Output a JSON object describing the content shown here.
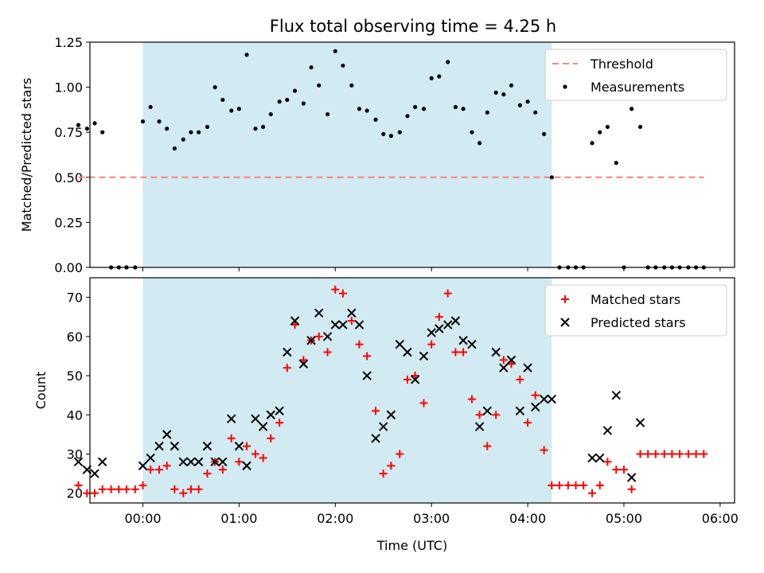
{
  "chart_data": [
    {
      "type": "scatter",
      "title": "Flux total observing time = 4.25 h",
      "xlabel": "",
      "ylabel": "Matched/Predicted stars",
      "xlim": [
        -0.55,
        6.15
      ],
      "ylim": [
        0,
        1.25
      ],
      "x_unit": "hours since 00:00 UTC",
      "x_tick_labels": [
        "00:00",
        "01:00",
        "02:00",
        "03:00",
        "04:00",
        "05:00",
        "06:00"
      ],
      "y_ticks": [
        0,
        0.25,
        0.5,
        0.75,
        1.0,
        1.25
      ],
      "y_tick_labels": [
        "0.00",
        "0.25",
        "0.50",
        "0.75",
        "1.00",
        "1.25"
      ],
      "shaded_interval": [
        0,
        4.25
      ],
      "shade_color": "#add8e6",
      "legend_position": "top-right",
      "series": [
        {
          "name": "Threshold",
          "kind": "dashed-line",
          "color": "#ff7f7f",
          "x": [
            -0.67,
            5.83
          ],
          "y": [
            0.5,
            0.5
          ]
        },
        {
          "name": "Measurements",
          "kind": "dot",
          "color": "#000000",
          "x": [
            -0.67,
            -0.58,
            -0.5,
            -0.42,
            -0.33,
            -0.25,
            -0.17,
            -0.08,
            0.0,
            0.08,
            0.17,
            0.25,
            0.33,
            0.42,
            0.5,
            0.58,
            0.67,
            0.75,
            0.83,
            0.92,
            1.0,
            1.08,
            1.17,
            1.25,
            1.33,
            1.42,
            1.5,
            1.58,
            1.67,
            1.75,
            1.83,
            1.92,
            2.0,
            2.08,
            2.17,
            2.25,
            2.33,
            2.42,
            2.5,
            2.58,
            2.67,
            2.75,
            2.83,
            2.92,
            3.0,
            3.08,
            3.17,
            3.25,
            3.33,
            3.42,
            3.5,
            3.58,
            3.67,
            3.75,
            3.83,
            3.92,
            4.0,
            4.08,
            4.17,
            4.25,
            4.33,
            4.42,
            4.5,
            4.58,
            4.67,
            4.75,
            4.83,
            4.92,
            5.0,
            5.08,
            5.17,
            5.25,
            5.33,
            5.42,
            5.5,
            5.58,
            5.67,
            5.75,
            5.83
          ],
          "y": [
            0.79,
            0.77,
            0.8,
            0.75,
            0.0,
            0.0,
            0.0,
            0.0,
            0.81,
            0.89,
            0.81,
            0.77,
            0.66,
            0.71,
            0.75,
            0.75,
            0.78,
            1.0,
            0.93,
            0.87,
            0.88,
            1.18,
            0.77,
            0.78,
            0.85,
            0.92,
            0.93,
            0.98,
            0.91,
            1.11,
            1.01,
            0.85,
            1.2,
            1.12,
            1.01,
            0.88,
            0.87,
            0.82,
            0.74,
            0.73,
            0.75,
            0.84,
            0.89,
            0.88,
            1.05,
            1.06,
            1.14,
            0.89,
            0.88,
            0.75,
            0.69,
            0.86,
            0.97,
            0.96,
            1.01,
            0.9,
            0.92,
            0.86,
            0.74,
            0.5,
            0.0,
            0.0,
            0.0,
            0.0,
            0.69,
            0.75,
            0.78,
            0.58,
            0.0,
            0.88,
            0.78,
            0.0,
            0.0,
            0.0,
            0.0,
            0.0,
            0.0,
            0.0,
            0.0
          ]
        }
      ]
    },
    {
      "type": "scatter",
      "title": "",
      "xlabel": "Time (UTC)",
      "ylabel": "Count",
      "xlim": [
        -0.55,
        6.15
      ],
      "ylim": [
        17.5,
        75
      ],
      "x_unit": "hours since 00:00 UTC",
      "x_tick_labels": [
        "00:00",
        "01:00",
        "02:00",
        "03:00",
        "04:00",
        "05:00",
        "06:00"
      ],
      "y_ticks": [
        20,
        30,
        40,
        50,
        60,
        70
      ],
      "y_tick_labels": [
        "20",
        "30",
        "40",
        "50",
        "60",
        "70"
      ],
      "shaded_interval": [
        0,
        4.25
      ],
      "shade_color": "#add8e6",
      "legend_position": "top-right",
      "series": [
        {
          "name": "Matched stars",
          "kind": "plus",
          "color": "#ff0000",
          "x": [
            -0.67,
            -0.58,
            -0.5,
            -0.42,
            -0.33,
            -0.25,
            -0.17,
            -0.08,
            0.0,
            0.08,
            0.17,
            0.25,
            0.33,
            0.42,
            0.5,
            0.58,
            0.67,
            0.75,
            0.83,
            0.92,
            1.0,
            1.08,
            1.17,
            1.25,
            1.33,
            1.42,
            1.5,
            1.58,
            1.67,
            1.75,
            1.83,
            1.92,
            2.0,
            2.08,
            2.17,
            2.25,
            2.33,
            2.42,
            2.5,
            2.58,
            2.67,
            2.75,
            2.83,
            2.92,
            3.0,
            3.08,
            3.17,
            3.25,
            3.33,
            3.42,
            3.5,
            3.58,
            3.67,
            3.75,
            3.83,
            3.92,
            4.0,
            4.08,
            4.17,
            4.25,
            4.33,
            4.42,
            4.5,
            4.58,
            4.67,
            4.75,
            4.83,
            4.92,
            5.0,
            5.08,
            5.17,
            5.25,
            5.33,
            5.42,
            5.5,
            5.58,
            5.67,
            5.75,
            5.83
          ],
          "y": [
            22,
            20,
            20,
            21,
            21,
            21,
            21,
            21,
            22,
            26,
            26,
            27,
            21,
            20,
            21,
            21,
            25,
            28,
            26,
            34,
            28,
            32,
            30,
            29,
            34,
            38,
            52,
            63,
            54,
            59,
            60,
            56,
            72,
            71,
            64,
            58,
            55,
            41,
            25,
            27,
            30,
            49,
            50,
            43,
            58,
            65,
            71,
            56,
            56,
            44,
            40,
            32,
            40,
            54,
            53,
            49,
            38,
            45,
            31,
            22,
            22,
            22,
            22,
            22,
            20,
            22,
            28,
            26,
            26,
            21,
            30,
            30,
            30,
            30,
            30,
            30,
            30,
            30,
            30
          ]
        },
        {
          "name": "Predicted stars",
          "kind": "x",
          "color": "#000000",
          "x": [
            -0.67,
            -0.58,
            -0.5,
            -0.42,
            0.0,
            0.08,
            0.17,
            0.25,
            0.33,
            0.42,
            0.5,
            0.58,
            0.67,
            0.75,
            0.83,
            0.92,
            1.0,
            1.08,
            1.17,
            1.25,
            1.33,
            1.42,
            1.5,
            1.58,
            1.67,
            1.75,
            1.83,
            1.92,
            2.0,
            2.08,
            2.17,
            2.25,
            2.33,
            2.42,
            2.5,
            2.58,
            2.67,
            2.75,
            2.83,
            2.92,
            3.0,
            3.08,
            3.17,
            3.25,
            3.33,
            3.42,
            3.5,
            3.58,
            3.67,
            3.75,
            3.83,
            3.92,
            4.0,
            4.08,
            4.17,
            4.25,
            4.67,
            4.75,
            4.83,
            4.92,
            5.08,
            5.17
          ],
          "y": [
            28,
            26,
            25,
            28,
            27,
            29,
            32,
            35,
            32,
            28,
            28,
            28,
            32,
            28,
            28,
            39,
            32,
            27,
            39,
            37,
            40,
            41,
            56,
            64,
            53,
            59,
            66,
            60,
            63,
            63,
            66,
            63,
            50,
            34,
            37,
            40,
            58,
            56,
            49,
            55,
            61,
            62,
            63,
            64,
            59,
            58,
            37,
            41,
            56,
            52,
            54,
            41,
            52,
            42,
            44,
            44,
            29,
            29,
            36,
            45,
            24,
            38
          ]
        }
      ]
    }
  ]
}
